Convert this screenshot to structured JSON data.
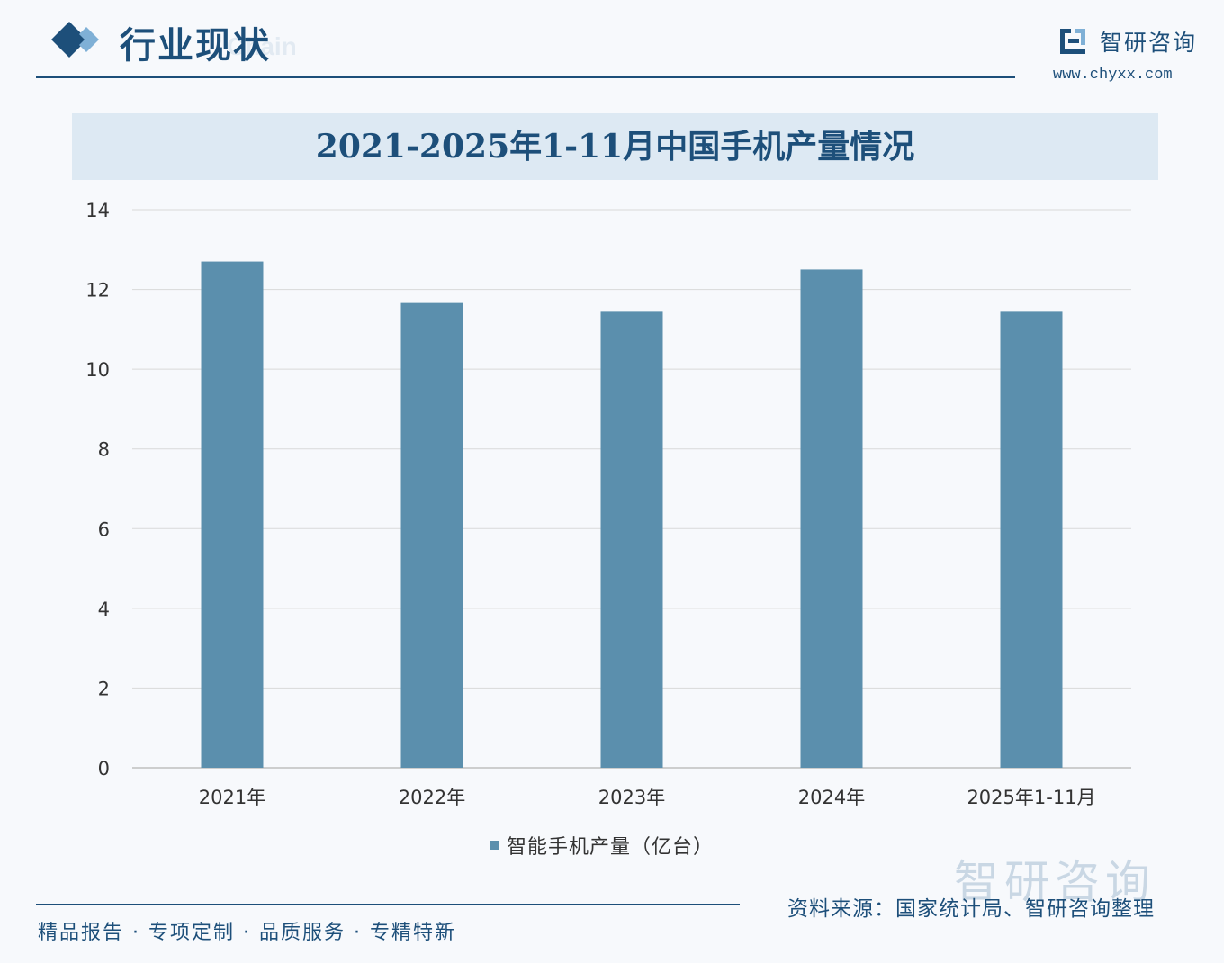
{
  "header": {
    "section_title": "行业现状",
    "section_title_ghost": "Chain",
    "brand_name": "智研咨询",
    "brand_url": "www.chyxx.com"
  },
  "chart_data": {
    "type": "bar",
    "title": "2021-2025年1-11月中国手机产量情况",
    "categories": [
      "2021年",
      "2022年",
      "2023年",
      "2024年",
      "2025年1-11月"
    ],
    "series": [
      {
        "name": "智能手机产量（亿台）",
        "values": [
          12.7,
          11.66,
          11.44,
          12.5,
          11.44
        ]
      }
    ],
    "ylim": [
      0,
      14
    ],
    "yticks": [
      0,
      2,
      4,
      6,
      8,
      10,
      12,
      14
    ],
    "xlabel": "",
    "ylabel": "",
    "grid": true,
    "legend": "bottom",
    "colors": {
      "bar": "#5b8fad",
      "grid": "#d9d9d9",
      "axis": "#bfbfbf"
    }
  },
  "watermark": {
    "logo_text": "智研咨询"
  },
  "footer": {
    "tagline": "精品报告 · 专项定制 · 品质服务 · 专精特新",
    "source": "资料来源：国家统计局、智研咨询整理"
  }
}
